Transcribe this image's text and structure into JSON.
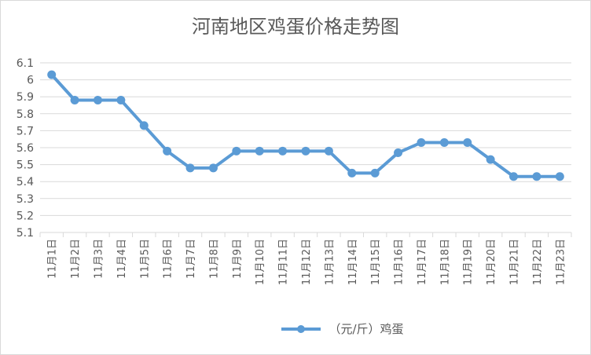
{
  "chart_data": {
    "type": "line",
    "title": "河南地区鸡蛋价格走势图",
    "categories": [
      "11月1日",
      "11月2日",
      "11月3日",
      "11月4日",
      "11月5日",
      "11月6日",
      "11月7日",
      "11月8日",
      "11月9日",
      "11月10日",
      "11月11日",
      "11月12日",
      "11月13日",
      "11月14日",
      "11月15日",
      "11月16日",
      "11月17日",
      "11月18日",
      "11月19日",
      "11月20日",
      "11月21日",
      "11月22日",
      "11月23日"
    ],
    "series": [
      {
        "name": "（元/斤）鸡蛋",
        "values": [
          6.03,
          5.88,
          5.88,
          5.88,
          5.73,
          5.58,
          5.48,
          5.48,
          5.58,
          5.58,
          5.58,
          5.58,
          5.58,
          5.45,
          5.45,
          5.57,
          5.63,
          5.63,
          5.63,
          5.53,
          5.43,
          5.43,
          5.43
        ]
      }
    ],
    "y_ticks": [
      "6.1",
      "6",
      "5.9",
      "5.8",
      "5.7",
      "5.6",
      "5.5",
      "5.4",
      "5.3",
      "5.2",
      "5.1"
    ],
    "ylim": [
      5.1,
      6.1
    ],
    "grid": true,
    "legend": "bottom",
    "colors": {
      "line": "#5b9bd5",
      "grid": "#d9d9d9",
      "text": "#595959"
    }
  }
}
